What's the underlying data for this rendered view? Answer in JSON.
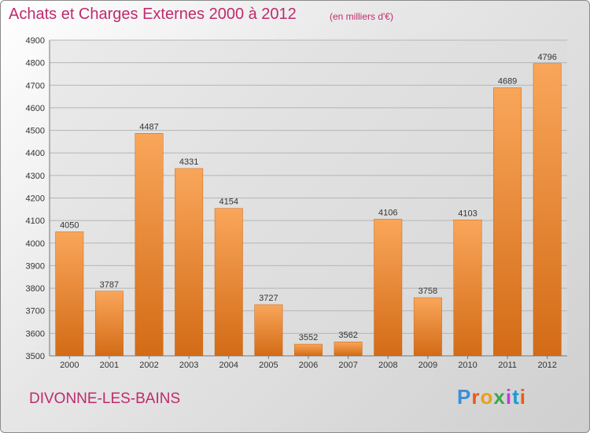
{
  "title": "Achats et Charges Externes 2000 à 2012",
  "subtitle": "(en milliers d'€)",
  "commune": "DIVONNE-LES-BAINS",
  "logo": {
    "text": "Proxiti",
    "letter_colors": [
      "#3b8ed8",
      "#e85a1a",
      "#e8a11a",
      "#3aa84a",
      "#c43ad8",
      "#1a9ad8",
      "#e85a1a"
    ]
  },
  "colors": {
    "accent": "#c02a6e",
    "bar_top": "#f9a65a",
    "bar_bottom": "#d36b16",
    "grid": "#b5b5b5",
    "plot_bg": "#dcdcdc"
  },
  "chart_data": {
    "type": "bar",
    "categories": [
      "2000",
      "2001",
      "2002",
      "2003",
      "2004",
      "2005",
      "2006",
      "2007",
      "2008",
      "2009",
      "2010",
      "2011",
      "2012"
    ],
    "values": [
      4050,
      3787,
      4487,
      4331,
      4154,
      3727,
      3552,
      3562,
      4106,
      3758,
      4103,
      4689,
      4796
    ],
    "yticks": [
      3500,
      3600,
      3700,
      3800,
      3900,
      4000,
      4100,
      4200,
      4300,
      4400,
      4500,
      4600,
      4700,
      4800,
      4900
    ],
    "ylim": [
      3500,
      4900
    ],
    "grid": true,
    "title": "Achats et Charges Externes 2000 à 2012",
    "xlabel": "",
    "ylabel": ""
  }
}
